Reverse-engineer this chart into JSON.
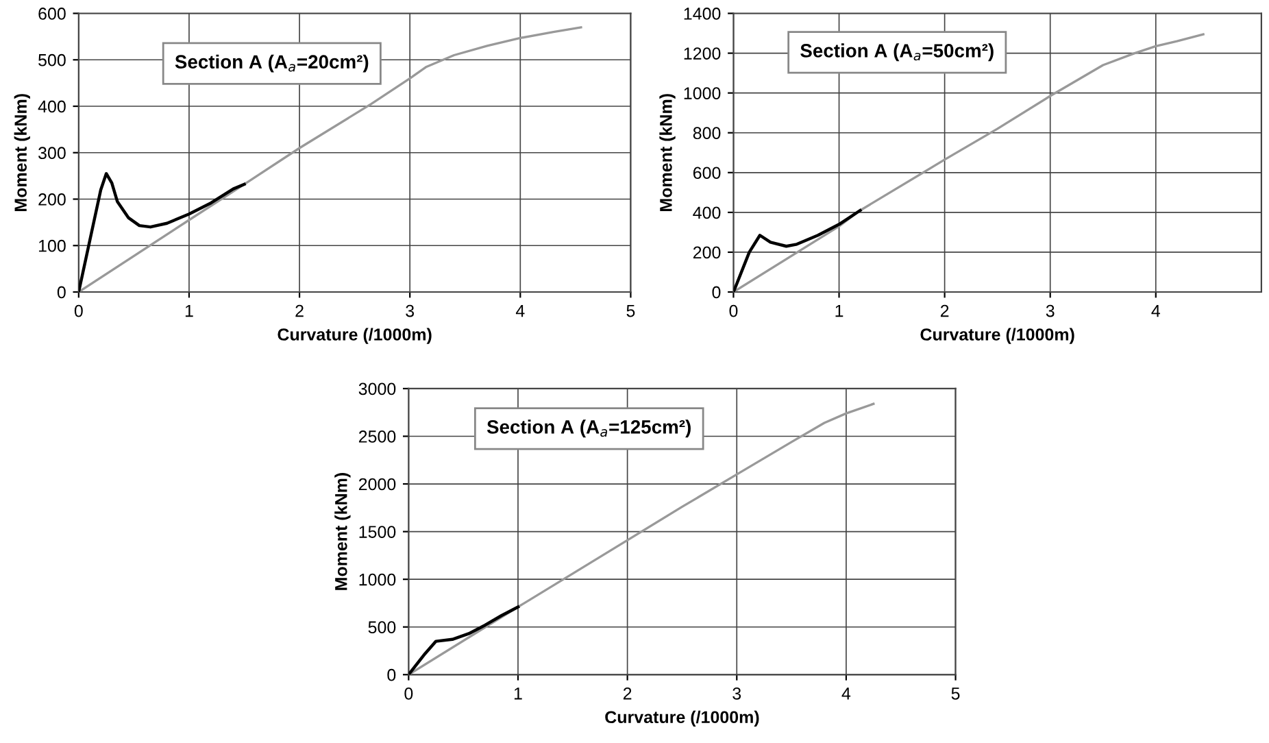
{
  "chart_data": [
    {
      "type": "line",
      "xlabel": "Curvature (/1000m)",
      "ylabel": "Moment (kNm)",
      "annotations": [
        "Section A (A$_{a}$=20cm²)"
      ],
      "xlim": [
        0,
        5
      ],
      "ylim": [
        0,
        600
      ],
      "xticks": [
        0,
        1,
        2,
        3,
        4,
        5
      ],
      "yticks": [
        0,
        100,
        200,
        300,
        400,
        500,
        600
      ],
      "grid": true,
      "legend": false,
      "series": [
        {
          "color": "#999999",
          "x": [
            0,
            1,
            1.5,
            2,
            2.65,
            3,
            3.15,
            3.4,
            3.7,
            4,
            4.3,
            4.55
          ],
          "values": [
            0,
            155,
            232,
            310,
            405,
            460,
            485,
            510,
            530,
            547,
            560,
            570
          ]
        },
        {
          "color": "#000000",
          "x": [
            0,
            0.1,
            0.2,
            0.25,
            0.3,
            0.35,
            0.45,
            0.55,
            0.65,
            0.8,
            1.0,
            1.2,
            1.4,
            1.5
          ],
          "values": [
            0,
            110,
            220,
            255,
            235,
            195,
            160,
            143,
            140,
            148,
            168,
            192,
            222,
            232
          ]
        }
      ]
    },
    {
      "type": "line",
      "xlabel": "Curvature (/1000m)",
      "ylabel": "Moment (kNm)",
      "annotations": [
        "Section A (A$_{a}$=50cm²)"
      ],
      "xlim": [
        0,
        5
      ],
      "ylim": [
        0,
        1400
      ],
      "xticks": [
        0,
        1,
        2,
        3,
        4
      ],
      "yticks": [
        0,
        200,
        400,
        600,
        800,
        1000,
        1200,
        1400
      ],
      "grid": true,
      "legend": false,
      "series": [
        {
          "color": "#999999",
          "x": [
            0,
            1,
            1.2,
            2,
            2.5,
            3,
            3.5,
            3.8,
            4,
            4.2,
            4.45
          ],
          "values": [
            0,
            330,
            410,
            665,
            820,
            985,
            1140,
            1200,
            1235,
            1260,
            1295
          ]
        },
        {
          "color": "#000000",
          "x": [
            0,
            0.15,
            0.25,
            0.35,
            0.5,
            0.6,
            0.8,
            1.0,
            1.2
          ],
          "values": [
            0,
            200,
            285,
            250,
            230,
            240,
            285,
            340,
            410
          ]
        }
      ]
    },
    {
      "type": "line",
      "xlabel": "Curvature (/1000m)",
      "ylabel": "Moment (kNm)",
      "annotations": [
        "Section A (A$_{a}$=125cm²)"
      ],
      "xlim": [
        0,
        5
      ],
      "ylim": [
        0,
        3000
      ],
      "xticks": [
        0,
        1,
        2,
        3,
        4,
        5
      ],
      "yticks": [
        0,
        500,
        1000,
        1500,
        2000,
        2500,
        3000
      ],
      "grid": true,
      "legend": false,
      "series": [
        {
          "color": "#999999",
          "x": [
            0,
            1,
            1.5,
            2,
            2.5,
            3,
            3.5,
            3.8,
            4,
            4.25
          ],
          "values": [
            0,
            710,
            1060,
            1410,
            1760,
            2100,
            2440,
            2640,
            2740,
            2840
          ]
        },
        {
          "color": "#000000",
          "x": [
            0,
            0.15,
            0.25,
            0.4,
            0.55,
            0.7,
            0.85,
            1.0
          ],
          "values": [
            0,
            220,
            350,
            370,
            430,
            520,
            620,
            710
          ]
        }
      ]
    }
  ]
}
